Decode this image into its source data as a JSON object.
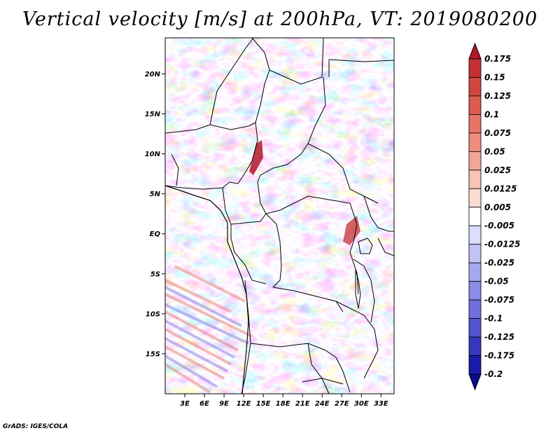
{
  "title": "Vertical velocity [m/s] at 200hPa, VT: 2019080200",
  "credit": "GrADS: IGES/COLA",
  "map": {
    "lat_labels": [
      "20N",
      "15N",
      "10N",
      "5N",
      "EQ",
      "5S",
      "10S",
      "15S"
    ],
    "lat_values": [
      20,
      15,
      10,
      5,
      0,
      -5,
      -10,
      -15
    ],
    "lon_labels": [
      "3E",
      "6E",
      "9E",
      "12E",
      "15E",
      "18E",
      "21E",
      "24E",
      "27E",
      "30E",
      "33E"
    ],
    "lon_values": [
      3,
      6,
      9,
      12,
      15,
      18,
      21,
      24,
      27,
      30,
      33
    ],
    "lon_range": [
      0,
      35
    ],
    "lat_range": [
      -20,
      24.5
    ]
  },
  "colorbar": {
    "labels": [
      "0.175",
      "0.15",
      "0.125",
      "0.1",
      "0.075",
      "0.05",
      "0.025",
      "0.0125",
      "0.005",
      "-0.005",
      "-0.0125",
      "-0.025",
      "-0.05",
      "-0.075",
      "-0.1",
      "-0.125",
      "-0.175",
      "-0.2"
    ],
    "colors": [
      "#b2182b",
      "#c22f35",
      "#d0463f",
      "#dc5d50",
      "#e57565",
      "#ec8d7c",
      "#f2a796",
      "#f7c3b6",
      "#fbdcd3",
      "#ffffff",
      "#dcdcfb",
      "#c2c2f6",
      "#a6a6ef",
      "#8c8ce6",
      "#7070dc",
      "#5454cf",
      "#3636bf",
      "#1a1aa8",
      "#0a0a8c"
    ]
  }
}
